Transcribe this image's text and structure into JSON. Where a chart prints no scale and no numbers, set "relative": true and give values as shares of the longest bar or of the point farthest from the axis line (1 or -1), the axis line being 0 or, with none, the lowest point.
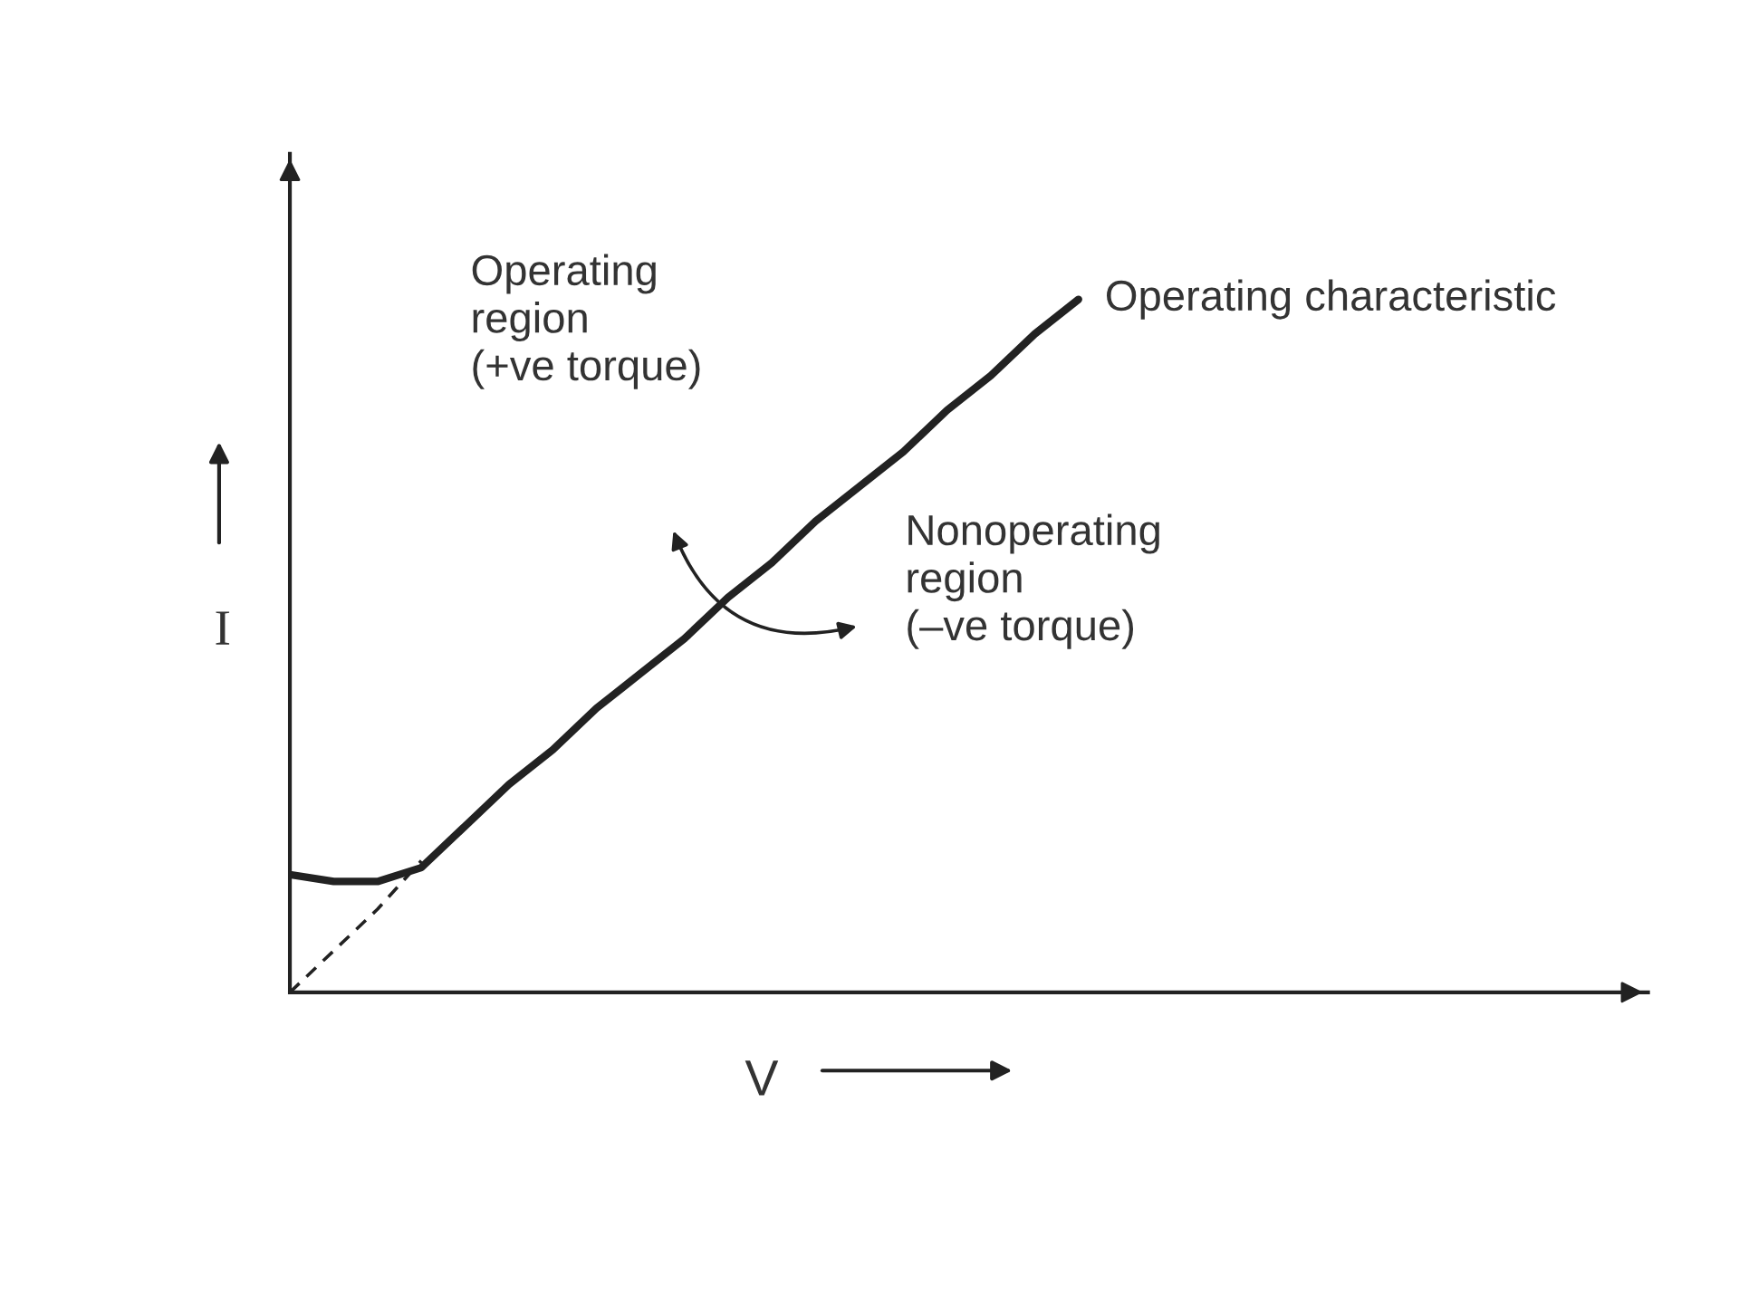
{
  "chart_data": {
    "type": "line",
    "relative": true,
    "xlabel": "V",
    "ylabel": "I",
    "categories": [
      null,
      null,
      null,
      null,
      null,
      null,
      null,
      null,
      null,
      null,
      null,
      null,
      null,
      null,
      null,
      null,
      null,
      null,
      null,
      null,
      null,
      null,
      null,
      null,
      null,
      null,
      null,
      null,
      null,
      null,
      null,
      null
    ],
    "series": [
      {
        "name": "Operating characteristic",
        "color": "#222222",
        "line_style": "solid",
        "values": [
          0.17,
          0.16,
          0.16,
          0.18,
          0.24,
          0.3,
          0.35,
          0.41,
          0.46,
          0.51,
          0.57,
          0.62,
          0.68,
          0.73,
          0.78,
          0.84,
          0.89,
          0.95,
          1.0,
          null,
          null,
          null,
          null,
          null,
          null,
          null,
          null,
          null,
          null,
          null,
          null,
          null
        ]
      },
      {
        "color": "#222222",
        "line_style": "dashed",
        "values": [
          0.0,
          0.06,
          0.12,
          0.19,
          null,
          null,
          null,
          null,
          null,
          null,
          null,
          null,
          null,
          null,
          null,
          null,
          null,
          null,
          null,
          null,
          null,
          null,
          null,
          null,
          null,
          null,
          null,
          null,
          null,
          null,
          null,
          null
        ]
      }
    ],
    "annotations": [
      "Operating\nregion\n(+ve torque)",
      "Nonoperating\nregion\n(–ve torque)"
    ]
  }
}
